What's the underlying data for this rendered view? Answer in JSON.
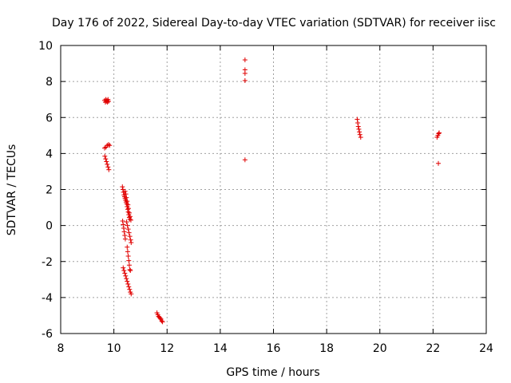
{
  "chart_data": {
    "type": "scatter",
    "title": "Day 176 of 2022, Sidereal Day-to-day VTEC variation (SDTVAR) for receiver iisc",
    "xlabel": "GPS time / hours",
    "ylabel": "SDTVAR / TECUs",
    "xlim": [
      8,
      24
    ],
    "ylim": [
      -6,
      10
    ],
    "xticks": [
      8,
      10,
      12,
      14,
      16,
      18,
      20,
      22,
      24
    ],
    "yticks": [
      -6,
      -4,
      -2,
      0,
      2,
      4,
      6,
      8,
      10
    ],
    "grid": true,
    "marker": "+",
    "series": [
      {
        "name": "SDTVAR",
        "color": "#e00000",
        "points": [
          [
            9.65,
            6.95
          ],
          [
            9.68,
            6.85
          ],
          [
            9.7,
            7.0
          ],
          [
            9.72,
            6.9
          ],
          [
            9.74,
            6.95
          ],
          [
            9.76,
            6.85
          ],
          [
            9.78,
            7.0
          ],
          [
            9.8,
            6.9
          ],
          [
            9.65,
            4.3
          ],
          [
            9.7,
            4.35
          ],
          [
            9.75,
            4.45
          ],
          [
            9.8,
            4.5
          ],
          [
            9.84,
            4.45
          ],
          [
            9.66,
            3.85
          ],
          [
            9.69,
            3.7
          ],
          [
            9.72,
            3.55
          ],
          [
            9.75,
            3.4
          ],
          [
            9.78,
            3.25
          ],
          [
            9.81,
            3.1
          ],
          [
            10.32,
            2.15
          ],
          [
            10.34,
            2.0
          ],
          [
            10.36,
            1.85
          ],
          [
            10.38,
            1.7
          ],
          [
            10.4,
            1.6
          ],
          [
            10.42,
            1.5
          ],
          [
            10.44,
            1.4
          ],
          [
            10.46,
            1.3
          ],
          [
            10.48,
            1.2
          ],
          [
            10.5,
            1.05
          ],
          [
            10.52,
            0.9
          ],
          [
            10.54,
            0.75
          ],
          [
            10.56,
            0.6
          ],
          [
            10.58,
            0.45
          ],
          [
            10.6,
            0.35
          ],
          [
            10.42,
            1.9
          ],
          [
            10.45,
            1.75
          ],
          [
            10.47,
            1.55
          ],
          [
            10.5,
            1.35
          ],
          [
            10.53,
            1.15
          ],
          [
            10.55,
            0.95
          ],
          [
            10.58,
            0.7
          ],
          [
            10.61,
            0.5
          ],
          [
            10.64,
            0.3
          ],
          [
            10.33,
            0.25
          ],
          [
            10.35,
            0.05
          ],
          [
            10.37,
            -0.15
          ],
          [
            10.39,
            -0.35
          ],
          [
            10.41,
            -0.55
          ],
          [
            10.43,
            -0.75
          ],
          [
            10.48,
            0.2
          ],
          [
            10.51,
            0.0
          ],
          [
            10.54,
            -0.2
          ],
          [
            10.57,
            -0.4
          ],
          [
            10.6,
            -0.6
          ],
          [
            10.63,
            -0.8
          ],
          [
            10.65,
            -0.95
          ],
          [
            10.5,
            -1.2
          ],
          [
            10.52,
            -1.45
          ],
          [
            10.54,
            -1.7
          ],
          [
            10.56,
            -1.95
          ],
          [
            10.58,
            -2.2
          ],
          [
            10.6,
            -2.45
          ],
          [
            10.62,
            -2.5
          ],
          [
            10.35,
            -2.35
          ],
          [
            10.38,
            -2.5
          ],
          [
            10.41,
            -2.65
          ],
          [
            10.44,
            -2.8
          ],
          [
            10.47,
            -2.95
          ],
          [
            10.5,
            -3.1
          ],
          [
            10.53,
            -3.25
          ],
          [
            10.56,
            -3.4
          ],
          [
            10.59,
            -3.55
          ],
          [
            10.62,
            -3.7
          ],
          [
            10.65,
            -3.8
          ],
          [
            11.62,
            -4.85
          ],
          [
            11.65,
            -4.95
          ],
          [
            11.68,
            -5.05
          ],
          [
            11.71,
            -5.1
          ],
          [
            11.74,
            -5.15
          ],
          [
            11.77,
            -5.2
          ],
          [
            11.8,
            -5.3
          ],
          [
            11.83,
            -5.35
          ],
          [
            14.93,
            9.2
          ],
          [
            14.93,
            8.65
          ],
          [
            14.93,
            8.45
          ],
          [
            14.93,
            8.05
          ],
          [
            14.93,
            3.65
          ],
          [
            19.15,
            5.9
          ],
          [
            19.17,
            5.7
          ],
          [
            19.19,
            5.5
          ],
          [
            19.21,
            5.35
          ],
          [
            19.23,
            5.2
          ],
          [
            19.25,
            5.05
          ],
          [
            19.28,
            4.9
          ],
          [
            22.15,
            4.9
          ],
          [
            22.18,
            5.0
          ],
          [
            22.21,
            5.1
          ],
          [
            22.23,
            5.15
          ],
          [
            22.2,
            3.45
          ]
        ]
      }
    ]
  }
}
